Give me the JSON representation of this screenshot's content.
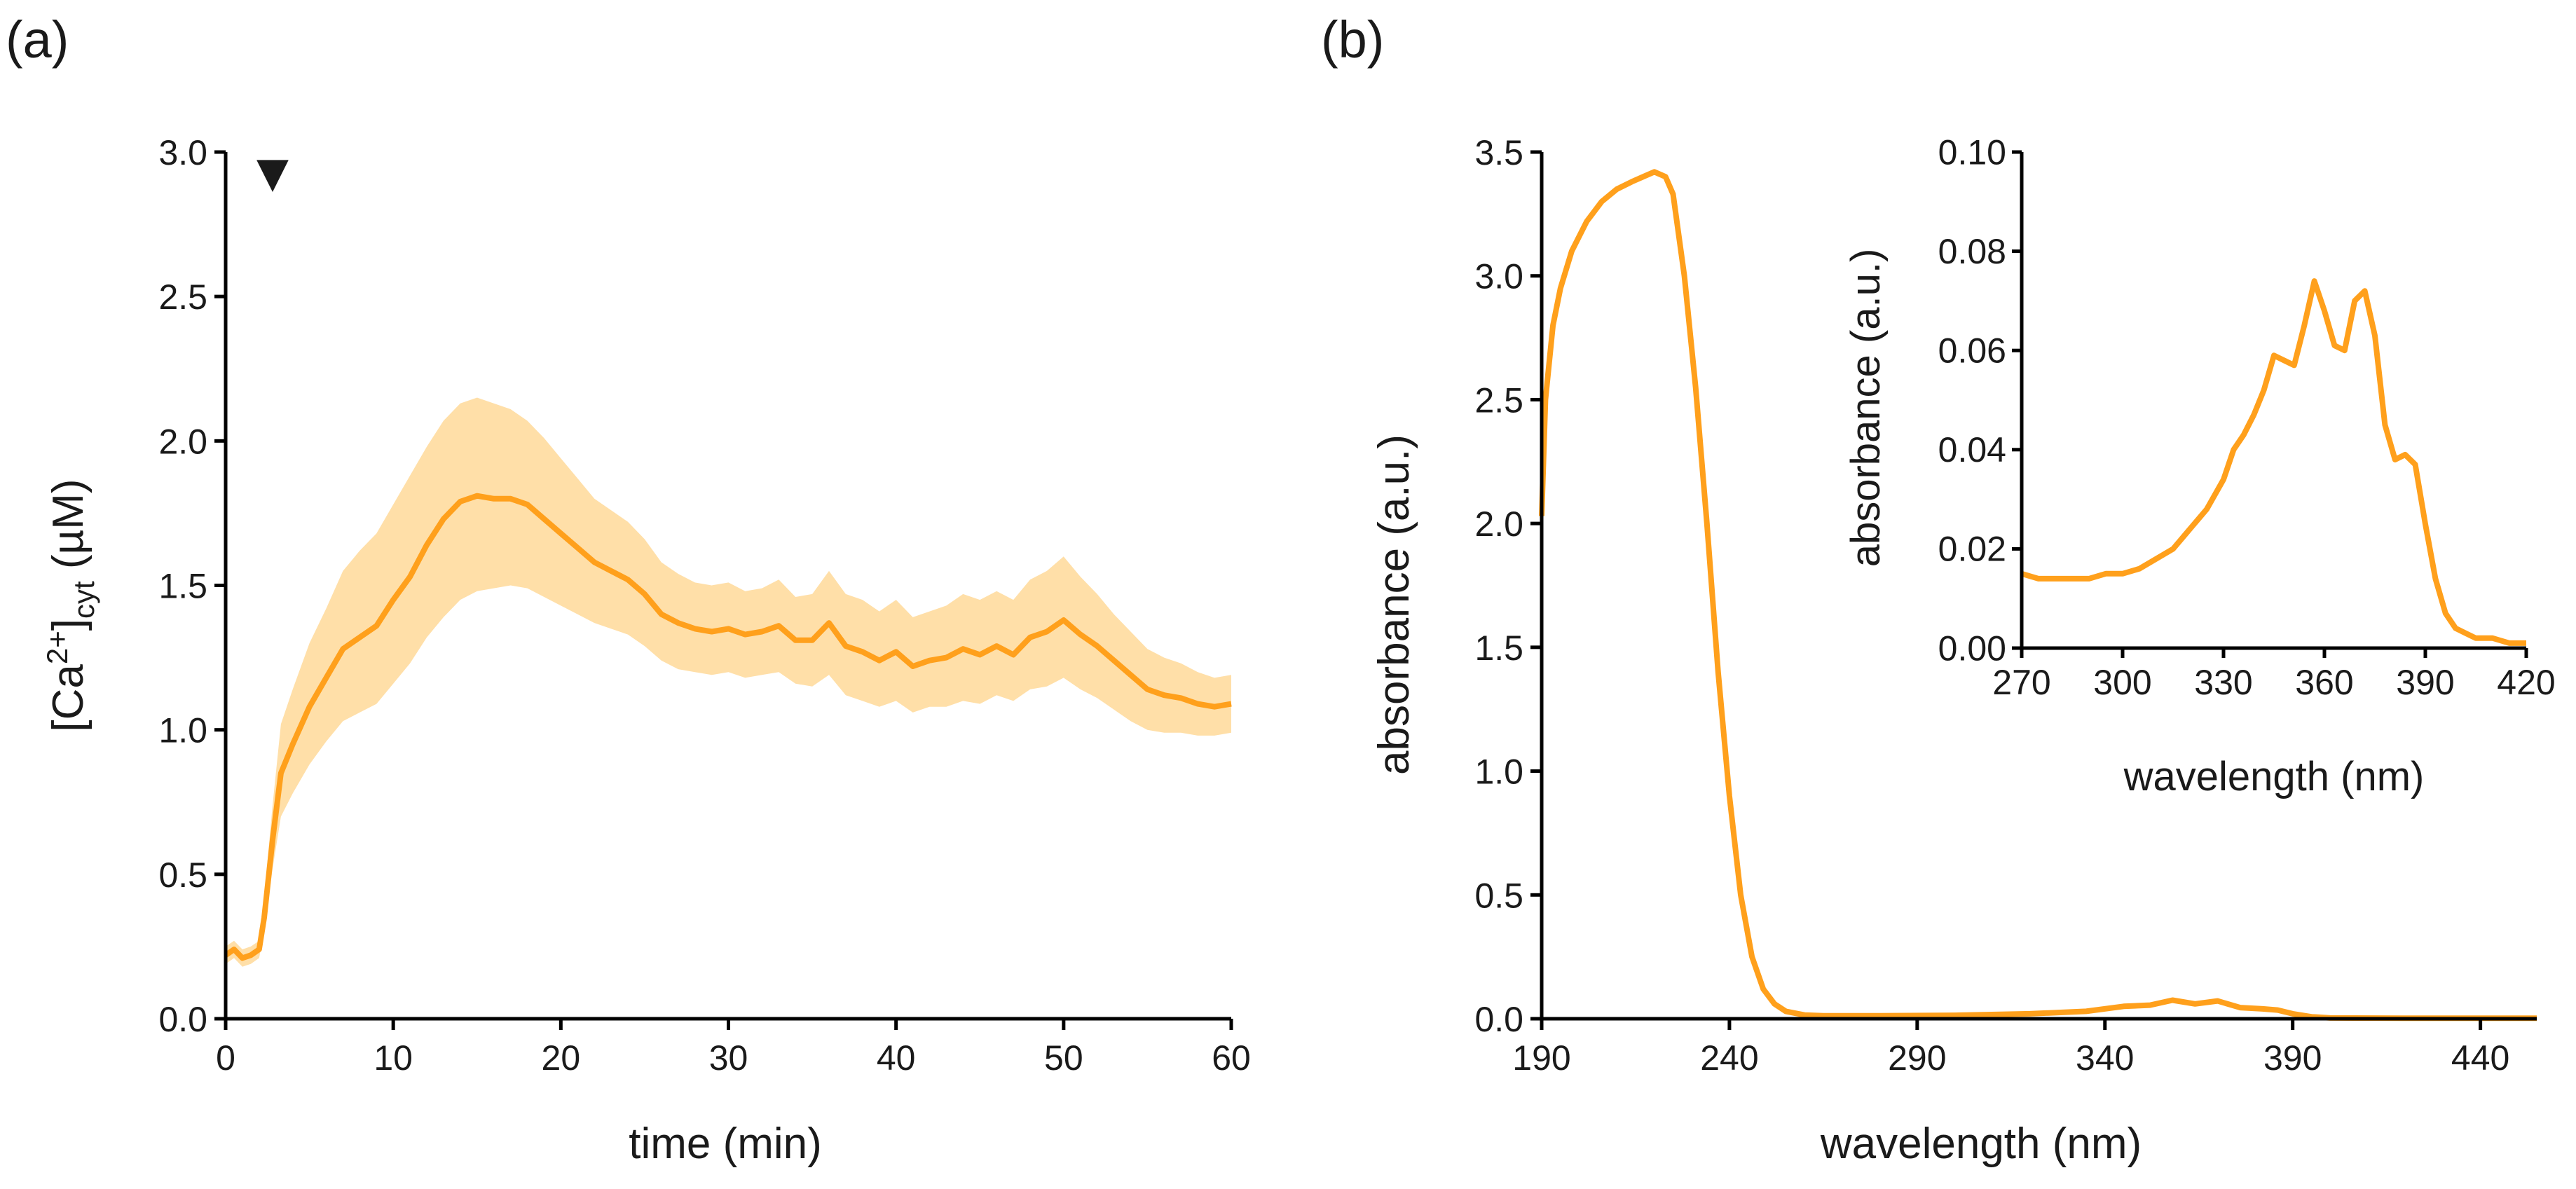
{
  "colors": {
    "series": "#FFA01C",
    "band": "#FFDFA8",
    "axis": "#000000",
    "marker": "#000000"
  },
  "panels": {
    "a": {
      "label": "(a)"
    },
    "b": {
      "label": "(b)"
    }
  },
  "chart_data": [
    {
      "id": "a",
      "type": "line",
      "title": "",
      "xlabel": "time (min)",
      "ylabel_base": "[Ca",
      "ylabel_sup": "2+",
      "ylabel_mid": "]",
      "ylabel_sub": "cyt",
      "ylabel_end": " (µM)",
      "xlim": [
        0,
        60
      ],
      "ylim": [
        0,
        3.0
      ],
      "xticks": [
        "0",
        "10",
        "20",
        "30",
        "40",
        "50",
        "60"
      ],
      "yticks": [
        "0.0",
        "0.5",
        "1.0",
        "1.5",
        "2.0",
        "2.5",
        "3.0"
      ],
      "annotation": {
        "symbol": "▼",
        "at_x": 2.8,
        "meaning": "stimulus added"
      },
      "series": [
        {
          "name": "mean [Ca2+]cyt",
          "x": [
            0,
            0.5,
            1,
            1.5,
            2,
            2.3,
            2.8,
            3.3,
            4,
            5,
            6,
            7,
            8,
            9,
            10,
            11,
            12,
            13,
            14,
            15,
            16,
            17,
            18,
            19,
            20,
            21,
            22,
            23,
            24,
            25,
            26,
            27,
            28,
            29,
            30,
            31,
            32,
            33,
            34,
            35,
            36,
            37,
            38,
            39,
            40,
            41,
            42,
            43,
            44,
            45,
            46,
            47,
            48,
            49,
            50,
            51,
            52,
            53,
            54,
            55,
            56,
            57,
            58,
            59,
            60
          ],
          "y": [
            0.22,
            0.24,
            0.21,
            0.22,
            0.24,
            0.35,
            0.62,
            0.85,
            0.95,
            1.08,
            1.18,
            1.28,
            1.32,
            1.36,
            1.45,
            1.53,
            1.64,
            1.73,
            1.79,
            1.81,
            1.8,
            1.8,
            1.78,
            1.73,
            1.68,
            1.63,
            1.58,
            1.55,
            1.52,
            1.47,
            1.4,
            1.37,
            1.35,
            1.34,
            1.35,
            1.33,
            1.34,
            1.36,
            1.31,
            1.31,
            1.37,
            1.29,
            1.27,
            1.24,
            1.27,
            1.22,
            1.24,
            1.25,
            1.28,
            1.26,
            1.29,
            1.26,
            1.32,
            1.34,
            1.38,
            1.33,
            1.29,
            1.24,
            1.19,
            1.14,
            1.12,
            1.11,
            1.09,
            1.08,
            1.09
          ]
        }
      ],
      "band": {
        "lower": [
          0.19,
          0.21,
          0.18,
          0.19,
          0.21,
          0.3,
          0.52,
          0.7,
          0.78,
          0.88,
          0.96,
          1.03,
          1.06,
          1.09,
          1.16,
          1.23,
          1.32,
          1.39,
          1.45,
          1.48,
          1.49,
          1.5,
          1.49,
          1.46,
          1.43,
          1.4,
          1.37,
          1.35,
          1.33,
          1.29,
          1.24,
          1.21,
          1.2,
          1.19,
          1.2,
          1.18,
          1.19,
          1.2,
          1.16,
          1.15,
          1.19,
          1.12,
          1.1,
          1.08,
          1.1,
          1.06,
          1.08,
          1.08,
          1.1,
          1.09,
          1.12,
          1.1,
          1.14,
          1.15,
          1.18,
          1.14,
          1.11,
          1.07,
          1.03,
          1.0,
          0.99,
          0.99,
          0.98,
          0.98,
          0.99
        ],
        "upper": [
          0.25,
          0.27,
          0.24,
          0.25,
          0.27,
          0.42,
          0.74,
          1.02,
          1.14,
          1.3,
          1.42,
          1.55,
          1.62,
          1.68,
          1.78,
          1.88,
          1.98,
          2.07,
          2.13,
          2.15,
          2.13,
          2.11,
          2.07,
          2.01,
          1.94,
          1.87,
          1.8,
          1.76,
          1.72,
          1.66,
          1.58,
          1.54,
          1.51,
          1.5,
          1.51,
          1.48,
          1.49,
          1.52,
          1.46,
          1.47,
          1.55,
          1.47,
          1.45,
          1.41,
          1.45,
          1.39,
          1.41,
          1.43,
          1.47,
          1.45,
          1.48,
          1.45,
          1.52,
          1.55,
          1.6,
          1.53,
          1.47,
          1.4,
          1.34,
          1.28,
          1.25,
          1.23,
          1.2,
          1.18,
          1.19
        ]
      }
    },
    {
      "id": "b",
      "type": "line",
      "title": "",
      "xlabel": "wavelength (nm)",
      "ylabel": "absorbance (a.u.)",
      "xlim": [
        190,
        455
      ],
      "ylim": [
        0,
        3.5
      ],
      "xticks": [
        "190",
        "240",
        "290",
        "340",
        "390",
        "440"
      ],
      "yticks": [
        "0.0",
        "0.5",
        "1.0",
        "1.5",
        "2.0",
        "2.5",
        "3.0",
        "3.5"
      ],
      "series": [
        {
          "name": "absorbance spectrum",
          "x": [
            190,
            191,
            193,
            195,
            198,
            202,
            206,
            210,
            214,
            217,
            220,
            223,
            225,
            228,
            231,
            234,
            237,
            240,
            243,
            246,
            249,
            252,
            255,
            260,
            265,
            270,
            280,
            300,
            320,
            335,
            345,
            352,
            358,
            364,
            370,
            376,
            382,
            386,
            390,
            395,
            400,
            420,
            455
          ],
          "y": [
            2.03,
            2.5,
            2.8,
            2.95,
            3.1,
            3.22,
            3.3,
            3.35,
            3.38,
            3.4,
            3.42,
            3.4,
            3.33,
            3.0,
            2.55,
            2.0,
            1.4,
            0.9,
            0.5,
            0.25,
            0.12,
            0.06,
            0.03,
            0.015,
            0.012,
            0.012,
            0.012,
            0.014,
            0.02,
            0.03,
            0.05,
            0.055,
            0.075,
            0.06,
            0.072,
            0.045,
            0.04,
            0.035,
            0.02,
            0.008,
            0.003,
            0.002,
            0.002
          ]
        }
      ]
    },
    {
      "id": "b-inset",
      "type": "line",
      "title": "",
      "xlabel": "wavelength (nm)",
      "ylabel": "absorbance (a.u.)",
      "xlim": [
        270,
        420
      ],
      "ylim": [
        0,
        0.1
      ],
      "xticks": [
        "270",
        "300",
        "330",
        "360",
        "390",
        "420"
      ],
      "yticks": [
        "0.00",
        "0.02",
        "0.04",
        "0.06",
        "0.08",
        "0.10"
      ],
      "series": [
        {
          "name": "absorbance spectrum (zoom)",
          "x": [
            270,
            275,
            280,
            285,
            290,
            295,
            300,
            305,
            310,
            315,
            320,
            325,
            330,
            333,
            336,
            339,
            342,
            345,
            348,
            351,
            354,
            357,
            360,
            363,
            366,
            369,
            372,
            375,
            378,
            381,
            384,
            387,
            390,
            393,
            396,
            399,
            402,
            405,
            410,
            415,
            420
          ],
          "y": [
            0.015,
            0.014,
            0.014,
            0.014,
            0.014,
            0.015,
            0.015,
            0.016,
            0.018,
            0.02,
            0.024,
            0.028,
            0.034,
            0.04,
            0.043,
            0.047,
            0.052,
            0.059,
            0.058,
            0.057,
            0.065,
            0.074,
            0.068,
            0.061,
            0.06,
            0.07,
            0.072,
            0.063,
            0.045,
            0.038,
            0.039,
            0.037,
            0.025,
            0.014,
            0.007,
            0.004,
            0.003,
            0.002,
            0.002,
            0.001,
            0.001
          ]
        }
      ]
    }
  ]
}
